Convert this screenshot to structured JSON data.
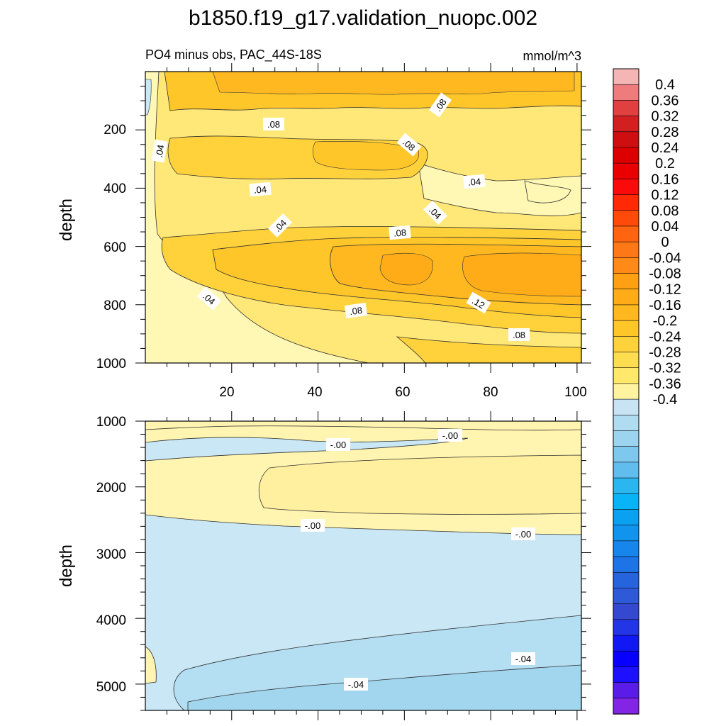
{
  "title": "b1850.f19_g17.validation_nuopc.002",
  "chart_data": [
    {
      "type": "contour",
      "name": "upper-panel",
      "subtitle_left": "PO4 minus obs, PAC_44S-18S",
      "subtitle_right": "mmol/m^3",
      "ylabel": "depth",
      "xlim": [
        0,
        101
      ],
      "ylim": [
        0,
        1000
      ],
      "y_reversed": true,
      "x_ticks": [
        "20",
        "40",
        "60",
        "80",
        "100"
      ],
      "y_ticks": [
        "200",
        "400",
        "600",
        "800",
        "1000"
      ],
      "contour_labels": [
        {
          "text": ".08",
          "x": 30,
          "y": 175
        },
        {
          "text": ".08",
          "x": 71,
          "y": 130
        },
        {
          "text": ".08",
          "x": 63,
          "y": 255
        },
        {
          "text": ".04",
          "x": 4,
          "y": 265
        },
        {
          "text": ".04",
          "x": 27,
          "y": 415
        },
        {
          "text": ".04",
          "x": 79,
          "y": 390
        },
        {
          "text": ".04",
          "x": 70,
          "y": 485
        },
        {
          "text": ".04",
          "x": 31,
          "y": 530
        },
        {
          "text": ".08",
          "x": 58,
          "y": 565
        },
        {
          "text": ".04",
          "x": 15,
          "y": 780
        },
        {
          "text": ".12",
          "x": 77,
          "y": 785
        },
        {
          "text": ".08",
          "x": 49,
          "y": 820
        },
        {
          "text": ".08",
          "x": 86,
          "y": 915
        }
      ]
    },
    {
      "type": "contour",
      "name": "lower-panel",
      "ylabel": "depth",
      "xlim": [
        0,
        101
      ],
      "ylim": [
        1000,
        5400
      ],
      "y_reversed": true,
      "y_ticks": [
        "1000",
        "2000",
        "3000",
        "4000",
        "5000"
      ],
      "contour_labels": [
        {
          "text": "-.00",
          "x": 49,
          "y": 1360
        },
        {
          "text": "-.00",
          "x": 72,
          "y": 1230
        },
        {
          "text": "-.00",
          "x": 39,
          "y": 2520
        },
        {
          "text": "-.00",
          "x": 86,
          "y": 2640
        },
        {
          "text": "-.04",
          "x": 88,
          "y": 4600
        },
        {
          "text": "-.04",
          "x": 50,
          "y": 4990
        }
      ]
    }
  ],
  "colorbar": {
    "labels": [
      "0.4",
      "0.36",
      "0.32",
      "0.28",
      "0.24",
      "0.2",
      "0.16",
      "0.12",
      "0.08",
      "0.04",
      "0",
      "-0.04",
      "-0.08",
      "-0.12",
      "-0.16",
      "-0.2",
      "-0.24",
      "-0.28",
      "-0.32",
      "-0.36",
      "-0.4"
    ],
    "colors": [
      "#f5b5b5",
      "#ee7c7c",
      "#e04040",
      "#d21f1f",
      "#cf0f0f",
      "#dd0000",
      "#ea0000",
      "#fa0a0a",
      "#ff2a05",
      "#ff4a0a",
      "#ff6410",
      "#ff7818",
      "#ff8a18",
      "#ffa014",
      "#ffac18",
      "#ffb820",
      "#ffc62a",
      "#ffd23c",
      "#ffdd50",
      "#ffe86a",
      "#fff3a0",
      "#c8e4f4",
      "#b0dcf2",
      "#9cd3ef",
      "#7ec8ee",
      "#60bdee",
      "#2cb6f0",
      "#08b4f6",
      "#0aa2f0",
      "#1194ee",
      "#1786ec",
      "#1c74e6",
      "#2664de",
      "#2e5ad8",
      "#3449cf",
      "#2236e8",
      "#1018f4",
      "#0600fc",
      "#1c10ff",
      "#5a1ce8",
      "#8424e4"
    ]
  },
  "palette": {
    "upper_fills": [
      "#fff7b4",
      "#ffe878",
      "#ffdd50",
      "#ffd23c",
      "#ffc62a",
      "#ffb820",
      "#ffac18",
      "#c9e7f5"
    ],
    "lower_fills": [
      "#fff4b0",
      "#fff0a0",
      "#c9e7f5",
      "#b4def2",
      "#a2d6ee"
    ],
    "line": "#303030"
  }
}
